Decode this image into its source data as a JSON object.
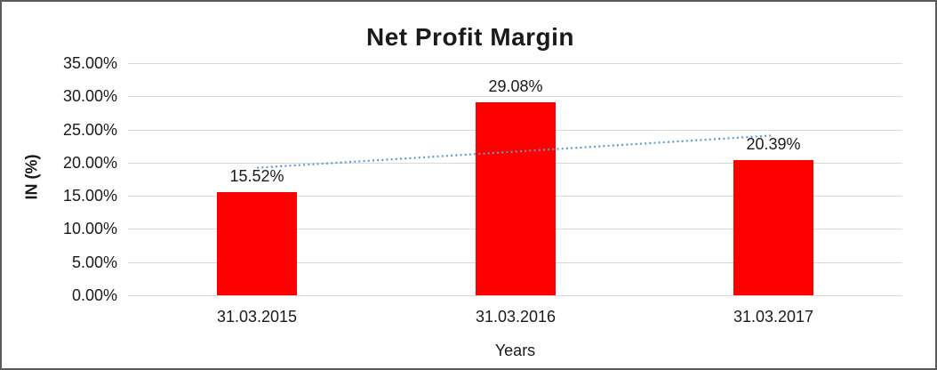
{
  "window": {
    "background": "#ffffff",
    "frame_border_color": "#5a5a5a"
  },
  "chart_data": {
    "type": "bar",
    "title": "Net Profit Margin",
    "xlabel": "Years",
    "ylabel": "IN (%)",
    "categories": [
      "31.03.2015",
      "31.03.2016",
      "31.03.2017"
    ],
    "values": [
      15.52,
      29.08,
      20.39
    ],
    "data_labels": [
      "15.52%",
      "29.08%",
      "20.39%"
    ],
    "ylim": [
      0,
      35
    ],
    "ytick_step": 5,
    "yticks": [
      "0.00%",
      "5.00%",
      "10.00%",
      "15.00%",
      "20.00%",
      "25.00%",
      "30.00%",
      "35.00%"
    ],
    "grid": true,
    "gridline_color": "#d9d9d9",
    "bar_color": "#ff0000",
    "legend": "none",
    "trendline": {
      "type": "linear",
      "style": "dotted",
      "color": "#5b9bd5"
    }
  }
}
